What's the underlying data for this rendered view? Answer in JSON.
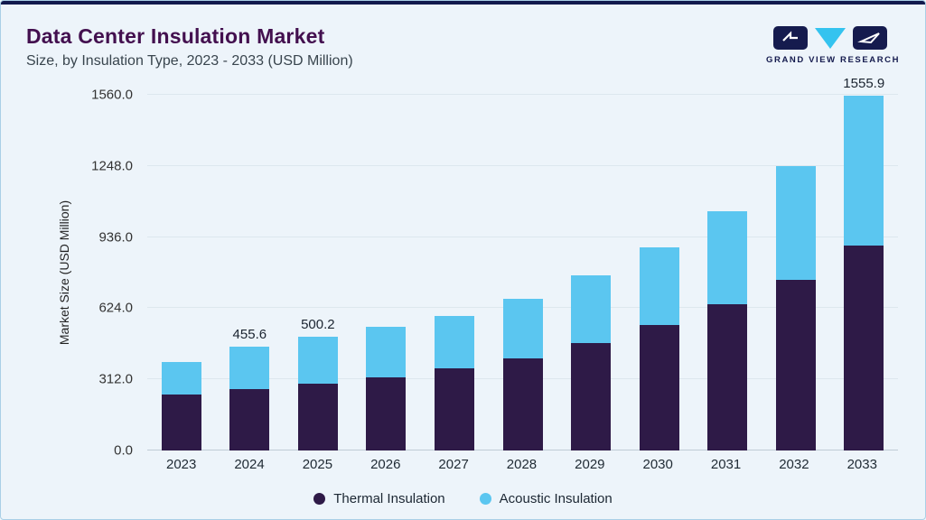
{
  "header": {
    "title": "Data Center Insulation Market",
    "subtitle": "Size, by Insulation Type, 2023 - 2033 (USD Million)",
    "brand": "GRAND VIEW RESEARCH"
  },
  "colors": {
    "accent_bar": "#111a4d",
    "card_background": "#edf4fa",
    "title_text": "#43104f",
    "thermal": "#2e1a47",
    "acoustic": "#5bc6f0",
    "logo_navy": "#151b4e",
    "logo_cyan": "#34c3ef"
  },
  "chart_data": {
    "type": "bar",
    "stacked": true,
    "title": "Data Center Insulation Market Size, by Insulation Type, 2023 - 2033 (USD Million)",
    "xlabel": "",
    "ylabel": "Market Size (USD Million)",
    "ylim": [
      0,
      1560
    ],
    "ytick_labels": [
      "0.0",
      "312.0",
      "624.0",
      "936.0",
      "1248.0",
      "1560.0"
    ],
    "grid": true,
    "legend_position": "bottom",
    "categories": [
      "2023",
      "2024",
      "2025",
      "2026",
      "2027",
      "2028",
      "2029",
      "2030",
      "2031",
      "2032",
      "2033"
    ],
    "series": [
      {
        "name": "Thermal Insulation",
        "color": "#2e1a47",
        "values": [
          245,
          268,
          293,
          322,
          360,
          404,
          470,
          549,
          641,
          749,
          900
        ]
      },
      {
        "name": "Acoustic Insulation",
        "color": "#5bc6f0",
        "values": [
          143,
          187.6,
          207.2,
          221,
          229,
          262,
          298,
          343,
          408,
          499,
          655.9
        ]
      }
    ],
    "totals": [
      388,
      455.6,
      500.2,
      543,
      589,
      666,
      768,
      892,
      1049,
      1248,
      1555.9
    ],
    "bar_labels": {
      "2024": "455.6",
      "2025": "500.2",
      "2033": "1555.9"
    }
  }
}
